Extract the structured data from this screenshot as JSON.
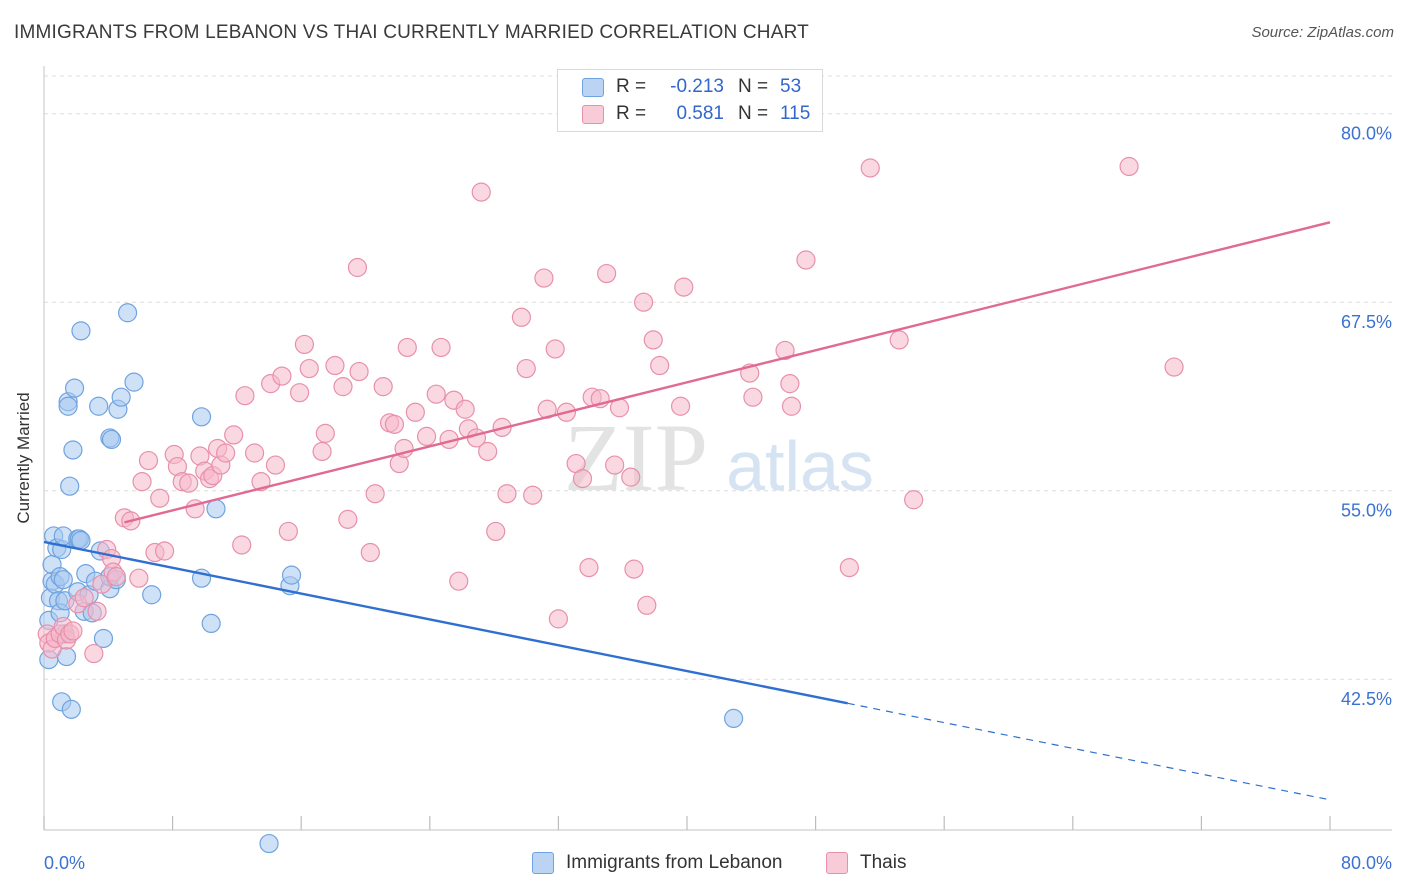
{
  "title": "IMMIGRANTS FROM LEBANON VS THAI CURRENTLY MARRIED CORRELATION CHART",
  "source": "Source: ZipAtlas.com",
  "watermark": {
    "zip": "ZIP",
    "atlas": "atlas"
  },
  "legend": {
    "rows": [
      {
        "r_label": "R =",
        "r_value": "-0.213",
        "n_label": "N =",
        "n_value": "53",
        "color": "#a8c8f0"
      },
      {
        "r_label": "R =",
        "r_value": "0.581",
        "n_label": "N =",
        "n_value": "115",
        "color": "#f5b8cb"
      }
    ]
  },
  "bottom_legend": [
    {
      "label": "Immigrants from Lebanon",
      "color": "#a8c8f0"
    },
    {
      "label": "Thais",
      "color": "#f5b8cb"
    }
  ],
  "chart_data": {
    "type": "scatter",
    "title": "IMMIGRANTS FROM LEBANON VS THAI CURRENTLY MARRIED CORRELATION CHART",
    "xlabel": "",
    "ylabel": "Currently Married",
    "xlim": [
      0,
      80
    ],
    "ylim": [
      32.5,
      82.5
    ],
    "x_tick_labels": [
      {
        "value": 0,
        "label": "0.0%"
      },
      {
        "value": 80,
        "label": "80.0%"
      }
    ],
    "y_tick_labels": [
      {
        "value": 42.5,
        "label": "42.5%"
      },
      {
        "value": 55.0,
        "label": "55.0%"
      },
      {
        "value": 67.5,
        "label": "67.5%"
      },
      {
        "value": 80.0,
        "label": "80.0%"
      }
    ],
    "grid": true,
    "legend_position": "top-center",
    "series": [
      {
        "name": "Immigrants from Lebanon",
        "color": "#6fa3e0",
        "fill": "#a8c8f0",
        "line_color": "#2f6fd0",
        "trend": {
          "x0": 0,
          "y0": 51.6,
          "x1": 50,
          "y1": 40.9,
          "dash_x1": 80,
          "dash_y1": 34.5
        },
        "points": [
          [
            0.3,
            43.8
          ],
          [
            0.3,
            46.4
          ],
          [
            0.4,
            47.9
          ],
          [
            0.5,
            49.0
          ],
          [
            0.5,
            50.1
          ],
          [
            0.6,
            52.0
          ],
          [
            0.7,
            48.8
          ],
          [
            0.8,
            51.2
          ],
          [
            0.9,
            47.7
          ],
          [
            1.0,
            49.3
          ],
          [
            1.0,
            46.9
          ],
          [
            1.1,
            51.1
          ],
          [
            1.1,
            41.0
          ],
          [
            1.2,
            52.0
          ],
          [
            1.2,
            49.1
          ],
          [
            1.3,
            47.7
          ],
          [
            1.3,
            45.5
          ],
          [
            1.4,
            44.0
          ],
          [
            1.5,
            60.9
          ],
          [
            1.5,
            60.6
          ],
          [
            1.6,
            55.3
          ],
          [
            1.7,
            40.5
          ],
          [
            1.8,
            57.7
          ],
          [
            1.9,
            61.8
          ],
          [
            2.1,
            48.3
          ],
          [
            2.1,
            51.8
          ],
          [
            2.2,
            51.8
          ],
          [
            2.3,
            65.6
          ],
          [
            2.3,
            51.7
          ],
          [
            2.5,
            47.0
          ],
          [
            2.6,
            49.5
          ],
          [
            2.8,
            48.1
          ],
          [
            3.0,
            46.9
          ],
          [
            3.2,
            49.0
          ],
          [
            3.4,
            60.6
          ],
          [
            3.5,
            51.0
          ],
          [
            3.7,
            45.2
          ],
          [
            4.1,
            48.5
          ],
          [
            4.1,
            49.3
          ],
          [
            4.1,
            58.5
          ],
          [
            4.2,
            58.4
          ],
          [
            4.5,
            49.1
          ],
          [
            4.6,
            60.4
          ],
          [
            4.8,
            61.2
          ],
          [
            5.2,
            66.8
          ],
          [
            5.6,
            62.2
          ],
          [
            6.7,
            48.1
          ],
          [
            9.8,
            59.9
          ],
          [
            9.8,
            49.2
          ],
          [
            10.4,
            46.2
          ],
          [
            10.7,
            53.8
          ],
          [
            14.0,
            31.6
          ],
          [
            15.3,
            48.7
          ],
          [
            15.4,
            49.4
          ],
          [
            42.9,
            39.9
          ]
        ]
      },
      {
        "name": "Thais",
        "color": "#e890ab",
        "fill": "#f5b8cb",
        "line_color": "#e06a93",
        "trend": {
          "x0": 5,
          "y0": 52.9,
          "x1": 80,
          "y1": 72.8
        },
        "points": [
          [
            0.2,
            45.5
          ],
          [
            0.3,
            44.9
          ],
          [
            0.5,
            44.5
          ],
          [
            0.7,
            45.2
          ],
          [
            1.0,
            45.5
          ],
          [
            1.2,
            46.0
          ],
          [
            1.4,
            45.1
          ],
          [
            1.6,
            45.5
          ],
          [
            1.8,
            45.7
          ],
          [
            2.1,
            47.5
          ],
          [
            2.5,
            47.9
          ],
          [
            3.1,
            44.2
          ],
          [
            3.3,
            47.0
          ],
          [
            3.6,
            48.8
          ],
          [
            3.9,
            51.1
          ],
          [
            4.2,
            50.5
          ],
          [
            4.3,
            49.6
          ],
          [
            4.5,
            49.3
          ],
          [
            5.0,
            53.2
          ],
          [
            5.4,
            53.0
          ],
          [
            5.9,
            49.2
          ],
          [
            6.1,
            55.6
          ],
          [
            6.5,
            57.0
          ],
          [
            6.9,
            50.9
          ],
          [
            7.2,
            54.5
          ],
          [
            7.5,
            51.0
          ],
          [
            8.1,
            57.4
          ],
          [
            8.3,
            56.6
          ],
          [
            8.6,
            55.6
          ],
          [
            9.0,
            55.5
          ],
          [
            9.4,
            53.8
          ],
          [
            9.7,
            57.3
          ],
          [
            10.0,
            56.3
          ],
          [
            10.3,
            55.8
          ],
          [
            10.5,
            56.0
          ],
          [
            10.8,
            57.8
          ],
          [
            11.0,
            56.7
          ],
          [
            11.3,
            57.5
          ],
          [
            11.8,
            58.7
          ],
          [
            12.3,
            51.4
          ],
          [
            12.5,
            61.3
          ],
          [
            13.1,
            57.5
          ],
          [
            13.5,
            55.6
          ],
          [
            14.1,
            62.1
          ],
          [
            14.4,
            56.7
          ],
          [
            14.8,
            62.6
          ],
          [
            15.2,
            52.3
          ],
          [
            15.9,
            61.5
          ],
          [
            16.2,
            64.7
          ],
          [
            16.5,
            63.1
          ],
          [
            17.3,
            57.6
          ],
          [
            17.5,
            58.8
          ],
          [
            18.1,
            63.3
          ],
          [
            18.6,
            61.9
          ],
          [
            18.9,
            53.1
          ],
          [
            19.5,
            69.8
          ],
          [
            19.6,
            62.9
          ],
          [
            20.3,
            50.9
          ],
          [
            20.6,
            54.8
          ],
          [
            21.1,
            61.9
          ],
          [
            21.5,
            59.5
          ],
          [
            21.8,
            59.4
          ],
          [
            22.1,
            56.8
          ],
          [
            22.4,
            57.8
          ],
          [
            22.6,
            64.5
          ],
          [
            23.1,
            60.2
          ],
          [
            23.8,
            58.6
          ],
          [
            24.4,
            61.4
          ],
          [
            24.7,
            64.5
          ],
          [
            25.2,
            58.4
          ],
          [
            25.5,
            61.0
          ],
          [
            25.8,
            49.0
          ],
          [
            26.2,
            60.4
          ],
          [
            26.4,
            59.1
          ],
          [
            26.9,
            58.5
          ],
          [
            27.2,
            74.8
          ],
          [
            27.6,
            57.6
          ],
          [
            28.5,
            59.2
          ],
          [
            28.1,
            52.3
          ],
          [
            28.8,
            54.8
          ],
          [
            29.7,
            66.5
          ],
          [
            30.0,
            63.1
          ],
          [
            30.4,
            54.7
          ],
          [
            31.1,
            69.1
          ],
          [
            31.3,
            60.4
          ],
          [
            31.8,
            64.4
          ],
          [
            32.0,
            46.5
          ],
          [
            32.5,
            60.2
          ],
          [
            33.1,
            56.8
          ],
          [
            33.5,
            55.8
          ],
          [
            33.9,
            49.9
          ],
          [
            34.1,
            61.2
          ],
          [
            34.6,
            61.1
          ],
          [
            35.0,
            69.4
          ],
          [
            35.5,
            56.7
          ],
          [
            35.8,
            60.5
          ],
          [
            36.5,
            55.9
          ],
          [
            36.7,
            49.8
          ],
          [
            37.3,
            67.5
          ],
          [
            37.5,
            47.4
          ],
          [
            37.9,
            65.0
          ],
          [
            38.3,
            63.3
          ],
          [
            39.6,
            60.6
          ],
          [
            39.8,
            68.5
          ],
          [
            43.9,
            62.8
          ],
          [
            44.1,
            61.2
          ],
          [
            46.1,
            64.3
          ],
          [
            46.4,
            62.1
          ],
          [
            46.5,
            60.6
          ],
          [
            47.4,
            70.3
          ],
          [
            50.1,
            49.9
          ],
          [
            51.4,
            76.4
          ],
          [
            53.2,
            65.0
          ],
          [
            54.1,
            54.4
          ],
          [
            67.5,
            76.5
          ],
          [
            70.3,
            63.2
          ]
        ]
      }
    ]
  }
}
